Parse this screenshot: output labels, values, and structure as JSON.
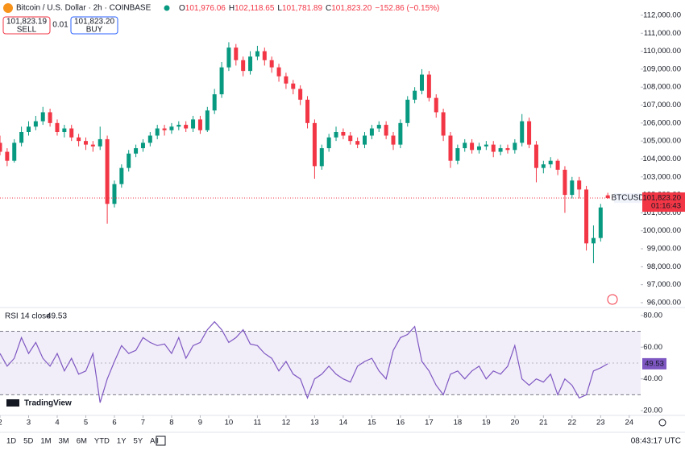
{
  "header": {
    "symbol": "Bitcoin / U.S. Dollar · 2h · COINBASE",
    "ohlc": [
      {
        "key": "O",
        "label": "101,976.06"
      },
      {
        "key": "H",
        "label": "102,118.65"
      },
      {
        "key": "L",
        "label": "101,781.89"
      },
      {
        "key": "C",
        "label": "101,823.20"
      }
    ],
    "change": "−152.86 (−0.15%)"
  },
  "trade": {
    "sell_price": "101,823.19",
    "sell": "SELL",
    "spread": "0.01",
    "buy_price": "101,823.20",
    "buy": "BUY"
  },
  "price_tag": {
    "symbol": "BTCUSD",
    "price": "101,823.20",
    "countdown": "01:16:43"
  },
  "toolbar": {
    "ranges": [
      "1D",
      "5D",
      "1M",
      "3M",
      "6M",
      "YTD",
      "1Y",
      "5Y",
      "All"
    ],
    "clock": "08:43:17 UTC"
  },
  "brand": "TradingView",
  "chart_data": {
    "type": "candlestick",
    "up_color": "#089981",
    "down_color": "#f23645",
    "x": [
      2,
      2.25,
      2.5,
      2.75,
      3,
      3.25,
      3.5,
      3.75,
      4,
      4.25,
      4.5,
      4.75,
      5,
      5.25,
      5.5,
      5.75,
      6,
      6.25,
      6.5,
      6.75,
      7,
      7.25,
      7.5,
      7.75,
      8,
      8.25,
      8.5,
      8.75,
      9,
      9.25,
      9.5,
      9.75,
      10,
      10.25,
      10.5,
      10.75,
      11,
      11.25,
      11.5,
      11.75,
      12,
      12.25,
      12.5,
      12.75,
      13,
      13.25,
      13.5,
      13.75,
      14,
      14.25,
      14.5,
      14.75,
      15,
      15.25,
      15.5,
      15.75,
      16,
      16.25,
      16.5,
      16.75,
      17,
      17.25,
      17.5,
      17.75,
      18,
      18.25,
      18.5,
      18.75,
      19,
      19.25,
      19.5,
      19.75,
      20,
      20.25,
      20.5,
      20.75,
      21,
      21.25,
      21.5,
      21.75,
      22,
      22.25,
      22.5,
      22.75,
      23,
      23.25
    ],
    "open": [
      104900,
      104400,
      103900,
      104900,
      105500,
      105800,
      106100,
      106600,
      106000,
      105500,
      105700,
      105200,
      105000,
      104800,
      104700,
      105100,
      101500,
      102600,
      103500,
      104300,
      104600,
      104900,
      105300,
      105700,
      105600,
      105800,
      105900,
      105700,
      106200,
      105600,
      106700,
      107600,
      109100,
      110200,
      109500,
      108900,
      109700,
      110000,
      109500,
      109100,
      108600,
      108200,
      107900,
      107300,
      106000,
      103600,
      104600,
      105200,
      105500,
      105300,
      105000,
      104800,
      105300,
      105700,
      105900,
      105300,
      104800,
      106000,
      107300,
      107800,
      108700,
      107400,
      106600,
      105300,
      103900,
      104600,
      104900,
      104500,
      104700,
      104800,
      104400,
      104600,
      104500,
      104900,
      106100,
      104800,
      103500,
      103700,
      103900,
      103400,
      102000,
      102800,
      102300,
      99300,
      99600,
      101976.06
    ],
    "high": [
      105300,
      104600,
      105100,
      105800,
      106100,
      106400,
      106900,
      106800,
      106200,
      105900,
      105900,
      105400,
      105200,
      105000,
      105800,
      105300,
      102800,
      103700,
      104500,
      104800,
      105100,
      105500,
      105900,
      105900,
      106000,
      106100,
      106100,
      106400,
      106400,
      106900,
      107900,
      109400,
      110500,
      110400,
      109700,
      110000,
      110300,
      110200,
      109700,
      109300,
      108800,
      108400,
      108100,
      107500,
      106200,
      104800,
      105400,
      105800,
      105700,
      105500,
      105200,
      105500,
      105900,
      106100,
      106100,
      105500,
      106200,
      107500,
      108000,
      109000,
      108900,
      107600,
      106800,
      105500,
      104800,
      105100,
      105100,
      104900,
      105000,
      105000,
      104800,
      104800,
      105100,
      106500,
      106300,
      105000,
      103900,
      104100,
      104000,
      103600,
      103000,
      103000,
      102500,
      100300,
      101500,
      102118.65
    ],
    "low": [
      104200,
      103600,
      103800,
      104700,
      105300,
      105600,
      105900,
      105800,
      105300,
      105200,
      105000,
      104700,
      104500,
      104400,
      104500,
      100400,
      101300,
      102400,
      103300,
      104100,
      104400,
      104700,
      105100,
      105300,
      105400,
      105600,
      105500,
      105500,
      105400,
      105500,
      106500,
      107400,
      108900,
      109200,
      108600,
      108700,
      109500,
      109200,
      108800,
      108300,
      107900,
      107600,
      107000,
      105700,
      102900,
      103400,
      104400,
      105000,
      105100,
      104800,
      104600,
      104600,
      105100,
      105500,
      105100,
      104500,
      104600,
      105800,
      107100,
      107600,
      107200,
      106300,
      105000,
      103500,
      103700,
      104400,
      104300,
      104300,
      104500,
      104100,
      104200,
      104300,
      104300,
      104700,
      104600,
      102700,
      103200,
      103500,
      103100,
      101000,
      101800,
      101800,
      98900,
      98200,
      99400,
      101781.89
    ],
    "close": [
      104400,
      103900,
      104900,
      105500,
      105800,
      106100,
      106600,
      106000,
      105500,
      105700,
      105200,
      105000,
      104800,
      104700,
      105100,
      101500,
      102600,
      103500,
      104300,
      104600,
      104900,
      105300,
      105700,
      105600,
      105800,
      105900,
      105700,
      106200,
      105600,
      106700,
      107600,
      109100,
      110200,
      109500,
      108900,
      109700,
      110000,
      109500,
      109100,
      108600,
      108200,
      107900,
      107300,
      106000,
      103600,
      104600,
      105200,
      105500,
      105300,
      105000,
      104800,
      105300,
      105700,
      105900,
      105300,
      104800,
      106000,
      107300,
      107800,
      108700,
      107400,
      106600,
      105300,
      103900,
      104600,
      104900,
      104500,
      104700,
      104800,
      104400,
      104600,
      104500,
      104900,
      106100,
      104800,
      103500,
      103700,
      103900,
      103400,
      102000,
      102800,
      102300,
      99300,
      99600,
      101300,
      101823.2
    ],
    "xlim": [
      2,
      24.4
    ],
    "xticks": [
      2,
      3,
      4,
      5,
      6,
      7,
      8,
      9,
      10,
      11,
      12,
      13,
      14,
      15,
      16,
      17,
      18,
      19,
      20,
      21,
      22,
      23,
      24
    ],
    "ylim": [
      95730,
      112850
    ],
    "yticks": [
      {
        "value": 112000,
        "label": "112,000.00"
      },
      {
        "value": 111000,
        "label": "111,000.00"
      },
      {
        "value": 110000,
        "label": "110,000.00"
      },
      {
        "value": 109000,
        "label": "109,000.00"
      },
      {
        "value": 108000,
        "label": "108,000.00"
      },
      {
        "value": 107000,
        "label": "107,000.00"
      },
      {
        "value": 106000,
        "label": "106,000.00"
      },
      {
        "value": 105000,
        "label": "105,000.00"
      },
      {
        "value": 104000,
        "label": "104,000.00"
      },
      {
        "value": 103000,
        "label": "103,000.00"
      },
      {
        "value": 102000,
        "label": "102,000.00"
      },
      {
        "value": 101000,
        "label": "101,000.00"
      },
      {
        "value": 100000,
        "label": "100,000.00"
      },
      {
        "value": 99000,
        "label": "99,000.00"
      },
      {
        "value": 98000,
        "label": "98,000.00"
      },
      {
        "value": 97000,
        "label": "97,000.00"
      },
      {
        "value": 96000,
        "label": "96,000.00"
      }
    ],
    "rsi": {
      "title": "RSI 14 close",
      "color": "#7e57c2",
      "bands": [
        30,
        70
      ],
      "midline": 50,
      "ylim": [
        17,
        85
      ],
      "yticks": [
        {
          "value": 80,
          "label": "80.00"
        },
        {
          "value": 60,
          "label": "60.00"
        },
        {
          "value": 40,
          "label": "40.00"
        },
        {
          "value": 20,
          "label": "20.00"
        }
      ],
      "values": [
        56,
        48,
        53,
        66,
        56,
        63,
        53,
        48,
        56,
        45,
        53,
        43,
        45,
        56,
        25,
        40,
        51,
        61,
        56,
        58,
        66,
        63,
        61,
        62,
        56,
        66,
        53,
        61,
        63,
        71,
        76,
        71,
        63,
        66,
        71,
        62,
        61,
        56,
        53,
        45,
        51,
        43,
        40,
        28,
        40,
        43,
        48,
        43,
        40,
        38,
        48,
        51,
        53,
        45,
        40,
        58,
        66,
        68,
        73,
        51,
        45,
        36,
        30,
        43,
        45,
        40,
        45,
        48,
        40,
        45,
        43,
        48,
        61,
        40,
        36,
        40,
        38,
        43,
        30,
        40,
        36,
        28,
        30,
        45,
        47,
        49.53
      ]
    }
  }
}
